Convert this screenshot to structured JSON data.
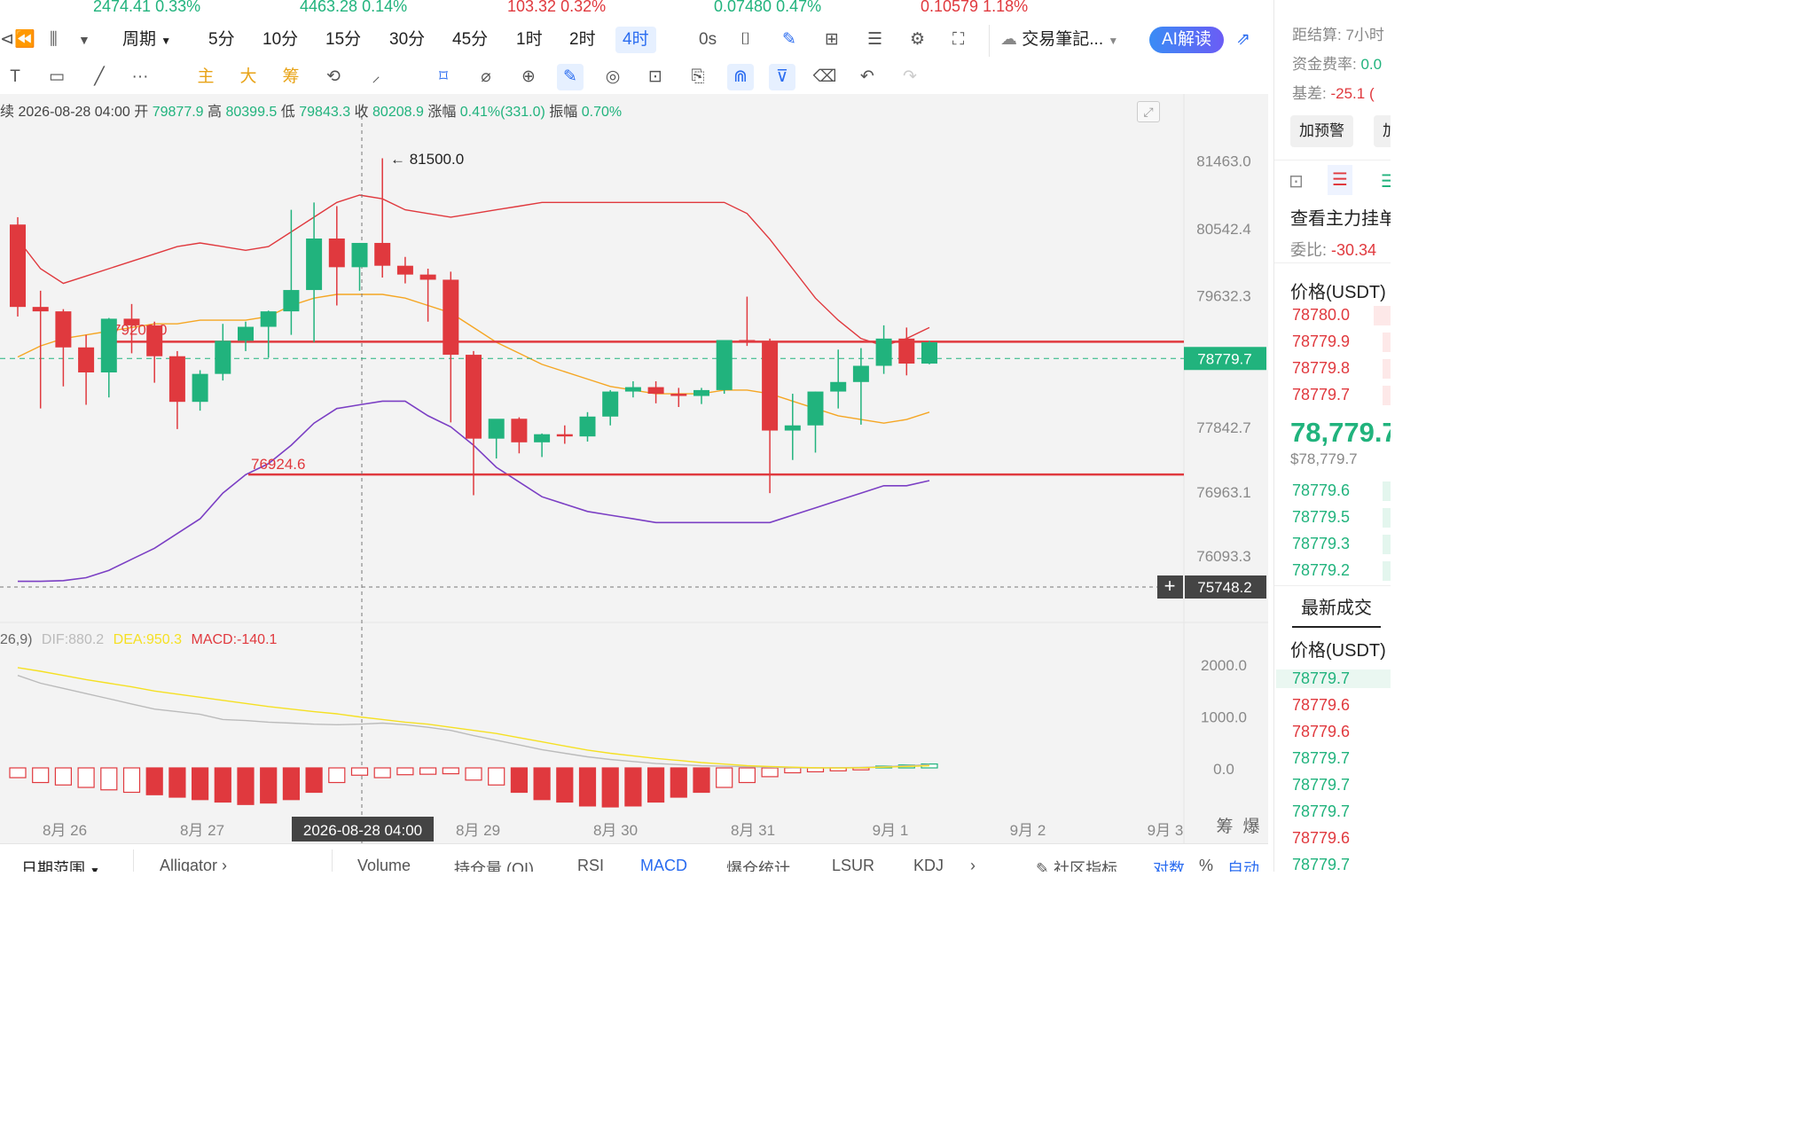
{
  "ticker": [
    {
      "value": "2474.41",
      "chg": "0.33%",
      "color": "g"
    },
    {
      "value": "4463.28",
      "chg": "0.14%",
      "color": "g"
    },
    {
      "value": "103.32",
      "chg": "0.32%",
      "color": "r"
    },
    {
      "value": "0.07480",
      "chg": "0.47%",
      "color": "g"
    },
    {
      "value": "0.10579",
      "chg": "1.18%",
      "color": "r"
    }
  ],
  "toolbar": {
    "period_label": "周期",
    "intervals": [
      "5分",
      "10分",
      "15分",
      "30分",
      "45分",
      "1时",
      "2时",
      "4时"
    ],
    "selected_interval": "4时",
    "countdown": "0s",
    "journal_label": "交易筆記...",
    "ai_label": "AI解读"
  },
  "drawing_tools": {
    "main": "主",
    "big": "大",
    "chip": "筹"
  },
  "ohlc": {
    "prefix": "续",
    "time": "2026-08-28 04:00",
    "open_label": "开",
    "open": "79877.9",
    "high_label": "高",
    "high": "80399.5",
    "low_label": "低",
    "low": "79843.3",
    "close_label": "收",
    "close": "80208.9",
    "chg_label": "涨幅",
    "chg": "0.41%(331.0)",
    "amp_label": "振幅",
    "amp": "0.70%"
  },
  "macd_info": {
    "params": "26,9)",
    "dif": "DIF:880.2",
    "dea": "DEA:950.3",
    "macd": "MACD:-140.1"
  },
  "chart_data": {
    "type": "candlestick",
    "interval": "4h",
    "y_axis_ticks": [
      "81463.0",
      "80542.4",
      "79632.3",
      "78779.7",
      "77842.7",
      "76963.1",
      "76093.3",
      "75748.2"
    ],
    "current_price": "78779.7",
    "crosshair_price": "75748.2",
    "crosshair_time": "2026-08-28 04:00",
    "x_labels": [
      "8月 26",
      "8月 27",
      "8月 28",
      "8月 29",
      "8月 30",
      "8月 31",
      "9月 1",
      "9月 2",
      "9月 3"
    ],
    "annotations": {
      "high_marker": "← 81500.0",
      "resistance_label": "79200.0",
      "support_label": "76924.6"
    },
    "resistance": 79200.0,
    "support": 76924.6,
    "candles": [
      [
        80600,
        80700,
        79350,
        79480
      ],
      [
        79480,
        79700,
        78100,
        79420
      ],
      [
        79420,
        79450,
        78400,
        78930
      ],
      [
        78930,
        79100,
        78150,
        78590
      ],
      [
        78590,
        79330,
        78250,
        79320
      ],
      [
        79320,
        79520,
        78850,
        79230
      ],
      [
        79230,
        79280,
        78450,
        78810
      ],
      [
        78810,
        78880,
        77820,
        78190
      ],
      [
        78190,
        78620,
        78070,
        78570
      ],
      [
        78570,
        79250,
        78480,
        79020
      ],
      [
        79020,
        79280,
        78880,
        79210
      ],
      [
        79210,
        79430,
        78790,
        79420
      ],
      [
        79420,
        80800,
        79100,
        79710
      ],
      [
        79710,
        80900,
        79000,
        80410
      ],
      [
        80410,
        80850,
        79500,
        80020
      ],
      [
        80020,
        80350,
        79700,
        80350
      ],
      [
        80350,
        81500,
        79880,
        80040
      ],
      [
        80040,
        80160,
        79800,
        79920
      ],
      [
        79920,
        80000,
        79280,
        79850
      ],
      [
        79850,
        79960,
        77910,
        78830
      ],
      [
        78830,
        78880,
        76920,
        77690
      ],
      [
        77690,
        77950,
        77420,
        77960
      ],
      [
        77960,
        77980,
        77490,
        77640
      ],
      [
        77640,
        77760,
        77440,
        77750
      ],
      [
        77750,
        77870,
        77620,
        77720
      ],
      [
        77720,
        78050,
        77650,
        77990
      ],
      [
        77990,
        78350,
        77870,
        78330
      ],
      [
        78330,
        78470,
        78250,
        78390
      ],
      [
        78390,
        78470,
        78170,
        78300
      ],
      [
        78300,
        78380,
        78120,
        78270
      ],
      [
        78270,
        78380,
        78160,
        78350
      ],
      [
        78350,
        79020,
        78300,
        79030
      ],
      [
        79030,
        79620,
        78950,
        79000
      ],
      [
        79000,
        79050,
        76950,
        77800
      ],
      [
        77800,
        78300,
        77400,
        77870
      ],
      [
        77870,
        78330,
        77500,
        78330
      ],
      [
        78330,
        78900,
        78100,
        78460
      ],
      [
        78460,
        78920,
        77880,
        78680
      ],
      [
        78680,
        79230,
        78570,
        79050
      ],
      [
        79050,
        79200,
        78550,
        78710
      ],
      [
        78710,
        79020,
        78700,
        79000
      ]
    ],
    "macd_ticks": [
      "2000.0",
      "1000.0",
      "0.0"
    ],
    "macd_histogram": [
      -200,
      -300,
      -350,
      -400,
      -450,
      -500,
      -550,
      -600,
      -650,
      -700,
      -750,
      -720,
      -650,
      -500,
      -300,
      -150,
      -200,
      -140,
      -130,
      -120,
      -250,
      -350,
      -500,
      -650,
      -700,
      -780,
      -800,
      -780,
      -700,
      -600,
      -500,
      -400,
      -300,
      -180,
      -100,
      -80,
      -60,
      -40,
      20,
      60,
      80
    ],
    "dif": [
      1800,
      1650,
      1550,
      1450,
      1350,
      1250,
      1150,
      1100,
      1050,
      950,
      930,
      900,
      880,
      860,
      850,
      860,
      880,
      850,
      800,
      740,
      640,
      550,
      460,
      370,
      300,
      230,
      180,
      140,
      100,
      80,
      60,
      50,
      40,
      30,
      20,
      15,
      20,
      25,
      40,
      60,
      80
    ],
    "dea": [
      1950,
      1880,
      1800,
      1720,
      1650,
      1580,
      1500,
      1440,
      1380,
      1320,
      1260,
      1200,
      1150,
      1100,
      1060,
      1000,
      950,
      900,
      860,
      800,
      740,
      680,
      600,
      520,
      440,
      360,
      300,
      250,
      200,
      160,
      120,
      90,
      60,
      45,
      30,
      20,
      15,
      20,
      30,
      45,
      60
    ],
    "upper_band": [
      80400,
      80000,
      79800,
      79900,
      80000,
      80100,
      80200,
      80300,
      80350,
      80300,
      80250,
      80300,
      80500,
      80700,
      80900,
      81000,
      80950,
      80800,
      80750,
      80700,
      80750,
      80800,
      80850,
      80900,
      80900,
      80900,
      80900,
      80900,
      80900,
      80900,
      80900,
      80900,
      80750,
      80400,
      80000,
      79600,
      79300,
      79050,
      78950,
      79050,
      79200
    ],
    "middle_band": [
      78800,
      78950,
      79050,
      79100,
      79150,
      79200,
      79250,
      79250,
      79300,
      79300,
      79300,
      79350,
      79500,
      79600,
      79650,
      79650,
      79650,
      79600,
      79500,
      79400,
      79200,
      79000,
      78850,
      78700,
      78600,
      78500,
      78400,
      78350,
      78300,
      78300,
      78300,
      78350,
      78350,
      78300,
      78200,
      78100,
      78000,
      77950,
      77900,
      77950,
      78050
    ],
    "lower_band": [
      75750,
      75750,
      75760,
      75800,
      75900,
      76050,
      76200,
      76400,
      76600,
      76950,
      77200,
      77350,
      77600,
      77900,
      78100,
      78150,
      78200,
      78200,
      78000,
      77850,
      77600,
      77300,
      77100,
      76900,
      76800,
      76700,
      76650,
      76600,
      76550,
      76550,
      76550,
      76550,
      76550,
      76550,
      76650,
      76750,
      76850,
      76950,
      77050,
      77050,
      77120
    ]
  },
  "bottom": {
    "date_range": "日期范围",
    "alligator": "Alligator",
    "indicators": [
      "Volume",
      "持仓量 (OI)",
      "RSI",
      "MACD",
      "爆仓统计",
      "LSUR",
      "KDJ"
    ],
    "community": "社区指标",
    "log": "对数",
    "pct": "%",
    "auto": "自动",
    "chip_tag": "筹",
    "burst_tag": "爆"
  },
  "sidebar": {
    "settle_label": "距结算:",
    "settle_value": "7小时",
    "funding_label": "资金费率:",
    "funding_value": "0.0",
    "basis_label": "基差:",
    "basis_value": "-25.1 (",
    "alert_button": "加预警",
    "add_button": "加",
    "main_orders_label": "查看主力挂单",
    "ratio_label": "委比:",
    "ratio_value": "-30.34",
    "price_header": "价格(USDT)",
    "asks": [
      "78780.0",
      "78779.9",
      "78779.8",
      "78779.7"
    ],
    "last_price": "78,779.7",
    "last_price_usd": "$78,779.7",
    "bids": [
      "78779.6",
      "78779.5",
      "78779.3",
      "78779.2"
    ],
    "trades_tab": "最新成交",
    "trades_header": "价格(USDT)",
    "trades": [
      {
        "p": "78779.7",
        "c": "g"
      },
      {
        "p": "78779.6",
        "c": "r"
      },
      {
        "p": "78779.6",
        "c": "r"
      },
      {
        "p": "78779.7",
        "c": "g"
      },
      {
        "p": "78779.7",
        "c": "g"
      },
      {
        "p": "78779.7",
        "c": "g"
      },
      {
        "p": "78779.6",
        "c": "r"
      },
      {
        "p": "78779.7",
        "c": "g"
      }
    ]
  },
  "colors": {
    "up": "#21b37d",
    "down": "#e0393e",
    "accent": "#2a6cf0",
    "upper_band": "#e0393e",
    "middle_band": "#f5a623",
    "lower_band": "#7b3fc4",
    "dif": "#bbbbbb",
    "dea": "#f5e023"
  }
}
